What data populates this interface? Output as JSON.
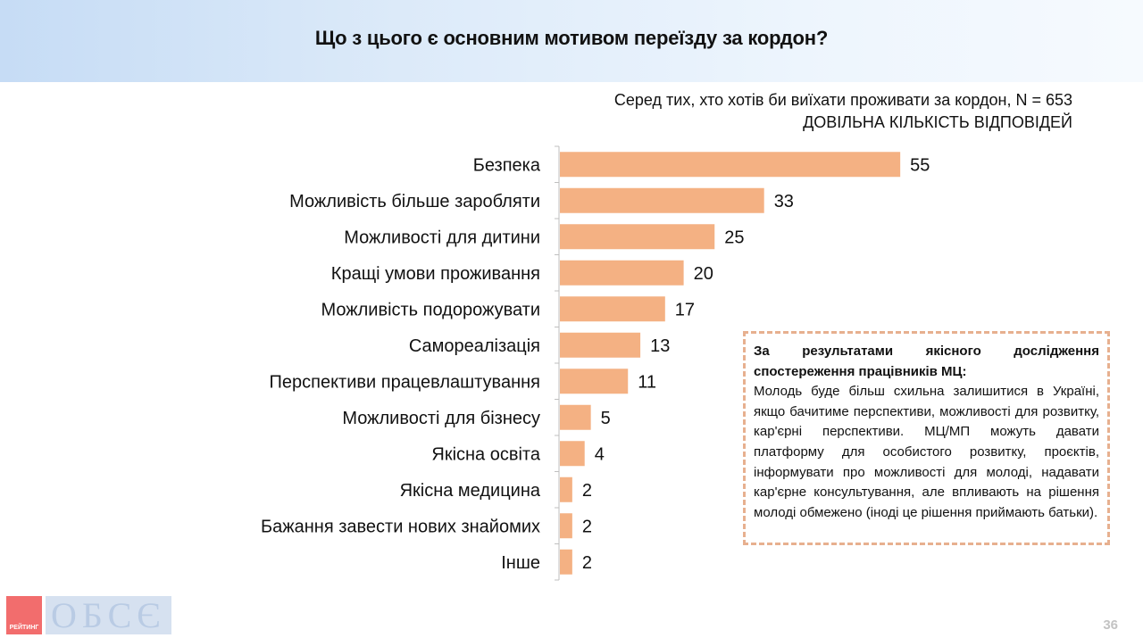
{
  "title": "Що з цього є основним мотивом переїзду за кордон?",
  "subtitle_line1": "Серед тих, хто хотів би виїхати проживати за кордон, N = 653",
  "subtitle_line2": "ДОВІЛЬНА КІЛЬКІСТЬ ВІДПОВІДЕЙ",
  "chart_data": {
    "type": "bar",
    "orientation": "horizontal",
    "categories": [
      "Безпека",
      "Можливість більше заробляти",
      "Можливості для дитини",
      "Кращі умови проживання",
      "Можливість подорожувати",
      "Самореалізація",
      "Перспективи працевлаштування",
      "Можливості для бізнесу",
      "Якісна освіта",
      "Якісна медицина",
      "Бажання завести нових знайомих",
      "Інше"
    ],
    "values": [
      55,
      33,
      25,
      20,
      17,
      13,
      11,
      5,
      4,
      2,
      2,
      2
    ],
    "bar_color": "#f4b183",
    "axis_color": "#bfbfbf",
    "grid": false,
    "legend": "none"
  },
  "note": {
    "heading": "За результатами якісного дослідження спостереження працівників МЦ:",
    "body": "Молодь буде більш схильна залишитися в Україні, якщо бачитиме перспективи, можливості для розвитку, кар'єрні перспективи. МЦ/МП можуть давати платформу для особистого розвитку, проєктів, інформувати про можливості для молоді, надавати кар'єрне консультування, але впливають на рішення молоді обмежено (іноді це рішення приймають батьки).",
    "border_color": "#e7b08f"
  },
  "logo": {
    "rating_text": "РЕЙТИНГ",
    "osce_text": "ОБСЄ",
    "rating_color": "#f26d6d"
  },
  "page_number": "36"
}
